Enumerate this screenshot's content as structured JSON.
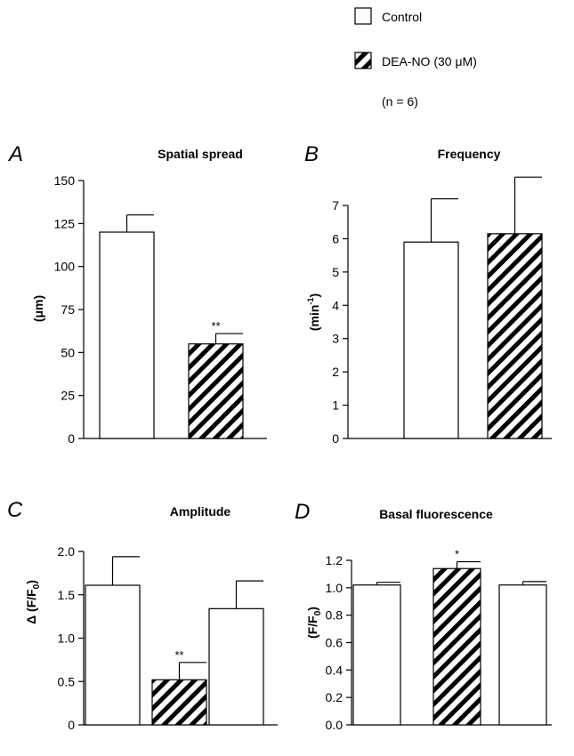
{
  "legend": {
    "control_label": "Control",
    "treated_label": "DEA-NO (30 μM)",
    "n_label": "(n = 6)"
  },
  "colors": {
    "ink": "#000000",
    "bar_fill": "#ffffff",
    "background": "#ffffff"
  },
  "chart_data": [
    {
      "panel": "A",
      "type": "bar",
      "title": "Spatial spread",
      "ylabel": "(μm)",
      "ylim": [
        0,
        150
      ],
      "yticks": [
        0,
        25,
        50,
        75,
        100,
        125,
        150
      ],
      "yticklabels": [
        "0",
        "25",
        "50",
        "75",
        "100",
        "125",
        "150"
      ],
      "bars": [
        {
          "group": "Control",
          "pattern": "open",
          "value": 120,
          "error": 10,
          "annotation": ""
        },
        {
          "group": "DEA-NO (30 μM)",
          "pattern": "hatched",
          "value": 55,
          "error": 6,
          "annotation": "**"
        }
      ]
    },
    {
      "panel": "B",
      "type": "bar",
      "title": "Frequency",
      "ylabel": "(min⁻¹)",
      "ylim": [
        0,
        7
      ],
      "yticks": [
        0,
        1,
        2,
        3,
        4,
        5,
        6,
        7
      ],
      "yticklabels": [
        "0",
        "1",
        "2",
        "3",
        "4",
        "5",
        "6",
        "7"
      ],
      "bars": [
        {
          "group": "Control",
          "pattern": "open",
          "value": 5.9,
          "error": 1.3,
          "annotation": ""
        },
        {
          "group": "DEA-NO (30 μM)",
          "pattern": "hatched",
          "value": 6.15,
          "error": 1.7,
          "annotation": ""
        }
      ]
    },
    {
      "panel": "C",
      "type": "bar",
      "title": "Amplitude",
      "ylabel": "Δ (F/F₀)",
      "ylim": [
        0,
        2.0
      ],
      "yticks": [
        0,
        0.5,
        1.0,
        1.5,
        2.0
      ],
      "yticklabels": [
        "0",
        "0.5",
        "1.0",
        "1.5",
        "2.0"
      ],
      "bars": [
        {
          "group": "Control",
          "pattern": "open",
          "value": 1.61,
          "error": 0.33,
          "annotation": ""
        },
        {
          "group": "DEA-NO (30 μM)",
          "pattern": "hatched",
          "value": 0.52,
          "error": 0.2,
          "annotation": "**"
        },
        {
          "group": "Control",
          "pattern": "open",
          "value": 1.34,
          "error": 0.32,
          "annotation": ""
        }
      ]
    },
    {
      "panel": "D",
      "type": "bar",
      "title": "Basal fluorescence",
      "ylabel": "(F/F₀)",
      "ylim": [
        0,
        1.2
      ],
      "yticks": [
        0,
        0.2,
        0.4,
        0.6,
        0.8,
        1.0,
        1.2
      ],
      "yticklabels": [
        "0.0",
        "0.2",
        "0.4",
        "0.6",
        "0.8",
        "1.0",
        "1.2"
      ],
      "bars": [
        {
          "group": "Control",
          "pattern": "open",
          "value": 1.02,
          "error": 0.02,
          "annotation": ""
        },
        {
          "group": "DEA-NO (30 μM)",
          "pattern": "hatched",
          "value": 1.14,
          "error": 0.05,
          "annotation": "*"
        },
        {
          "group": "Control",
          "pattern": "open",
          "value": 1.02,
          "error": 0.025,
          "annotation": ""
        }
      ]
    }
  ]
}
